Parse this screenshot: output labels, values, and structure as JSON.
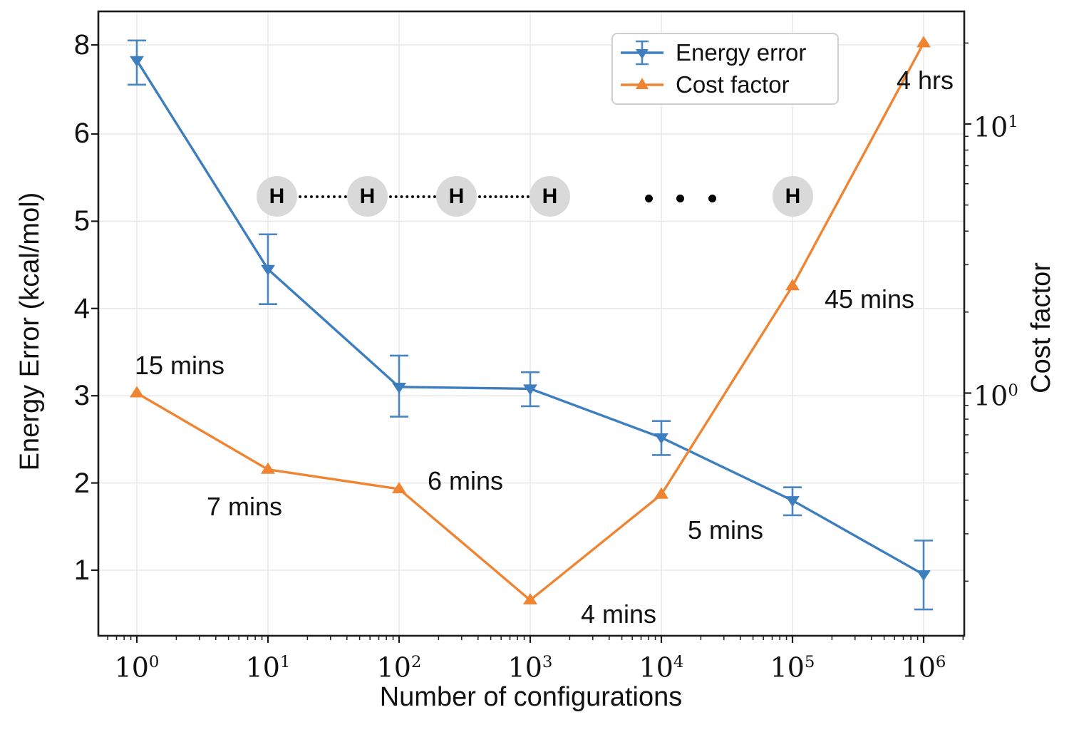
{
  "figure": {
    "xlabel": "Number of configurations",
    "ylabel_left": "Energy Error (kcal/mol)",
    "ylabel_right": "Cost factor",
    "background": "#ffffff"
  },
  "axes": {
    "x": {
      "scale": "log",
      "ticks": [
        {
          "base": "10",
          "exp": "0"
        },
        {
          "base": "10",
          "exp": "1"
        },
        {
          "base": "10",
          "exp": "2"
        },
        {
          "base": "10",
          "exp": "3"
        },
        {
          "base": "10",
          "exp": "4"
        },
        {
          "base": "10",
          "exp": "5"
        },
        {
          "base": "10",
          "exp": "6"
        }
      ]
    },
    "left": {
      "ticks": [
        "8",
        "6",
        "5",
        "4",
        "3",
        "2",
        "1"
      ],
      "note": "ticks equally spaced (nonlinear axis)"
    },
    "right": {
      "scale": "log",
      "ticks": [
        {
          "base": "10",
          "exp": "1"
        },
        {
          "base": "10",
          "exp": "0"
        }
      ]
    }
  },
  "legend": {
    "items": [
      {
        "label": "Energy error",
        "color": "#3d7ebf",
        "marker": "triangle-down-with-errorbar"
      },
      {
        "label": "Cost factor",
        "color": "#ef8532",
        "marker": "triangle-up"
      }
    ]
  },
  "chart_data": {
    "type": "line",
    "title": "",
    "xlabel": "Number of configurations",
    "ylabel_left": "Energy Error (kcal/mol)",
    "ylabel_right": "Cost factor",
    "x_scale": "log",
    "x": [
      1,
      10,
      100,
      1000,
      10000,
      100000,
      1000000
    ],
    "left_axis_ticks": [
      8,
      6,
      5,
      4,
      3,
      2,
      1
    ],
    "right_axis_ticks": [
      10,
      1
    ],
    "grid": true,
    "legend_position": "upper right",
    "series": [
      {
        "name": "Energy error",
        "axis": "left",
        "color": "#3d7ebf",
        "marker": "triangle-down",
        "values": [
          7.65,
          4.45,
          3.1,
          3.08,
          2.52,
          1.8,
          0.95
        ],
        "err_plus": [
          0.45,
          0.4,
          0.36,
          0.19,
          0.19,
          0.15,
          0.39
        ],
        "err_minus": [
          0.55,
          0.4,
          0.34,
          0.2,
          0.2,
          0.17,
          0.4
        ]
      },
      {
        "name": "Cost factor",
        "axis": "right",
        "color": "#ef8532",
        "marker": "triangle-up",
        "values": [
          1.0,
          0.52,
          0.44,
          0.17,
          0.42,
          2.5,
          20
        ],
        "point_labels": [
          "15 mins",
          "7 mins",
          "6 mins",
          "4 mins",
          "5 mins",
          "45 mins",
          "4 hrs"
        ]
      }
    ]
  },
  "molecule": {
    "atoms": [
      "H",
      "H",
      "H",
      "H",
      "H"
    ],
    "ellipsis_dots": 3
  }
}
